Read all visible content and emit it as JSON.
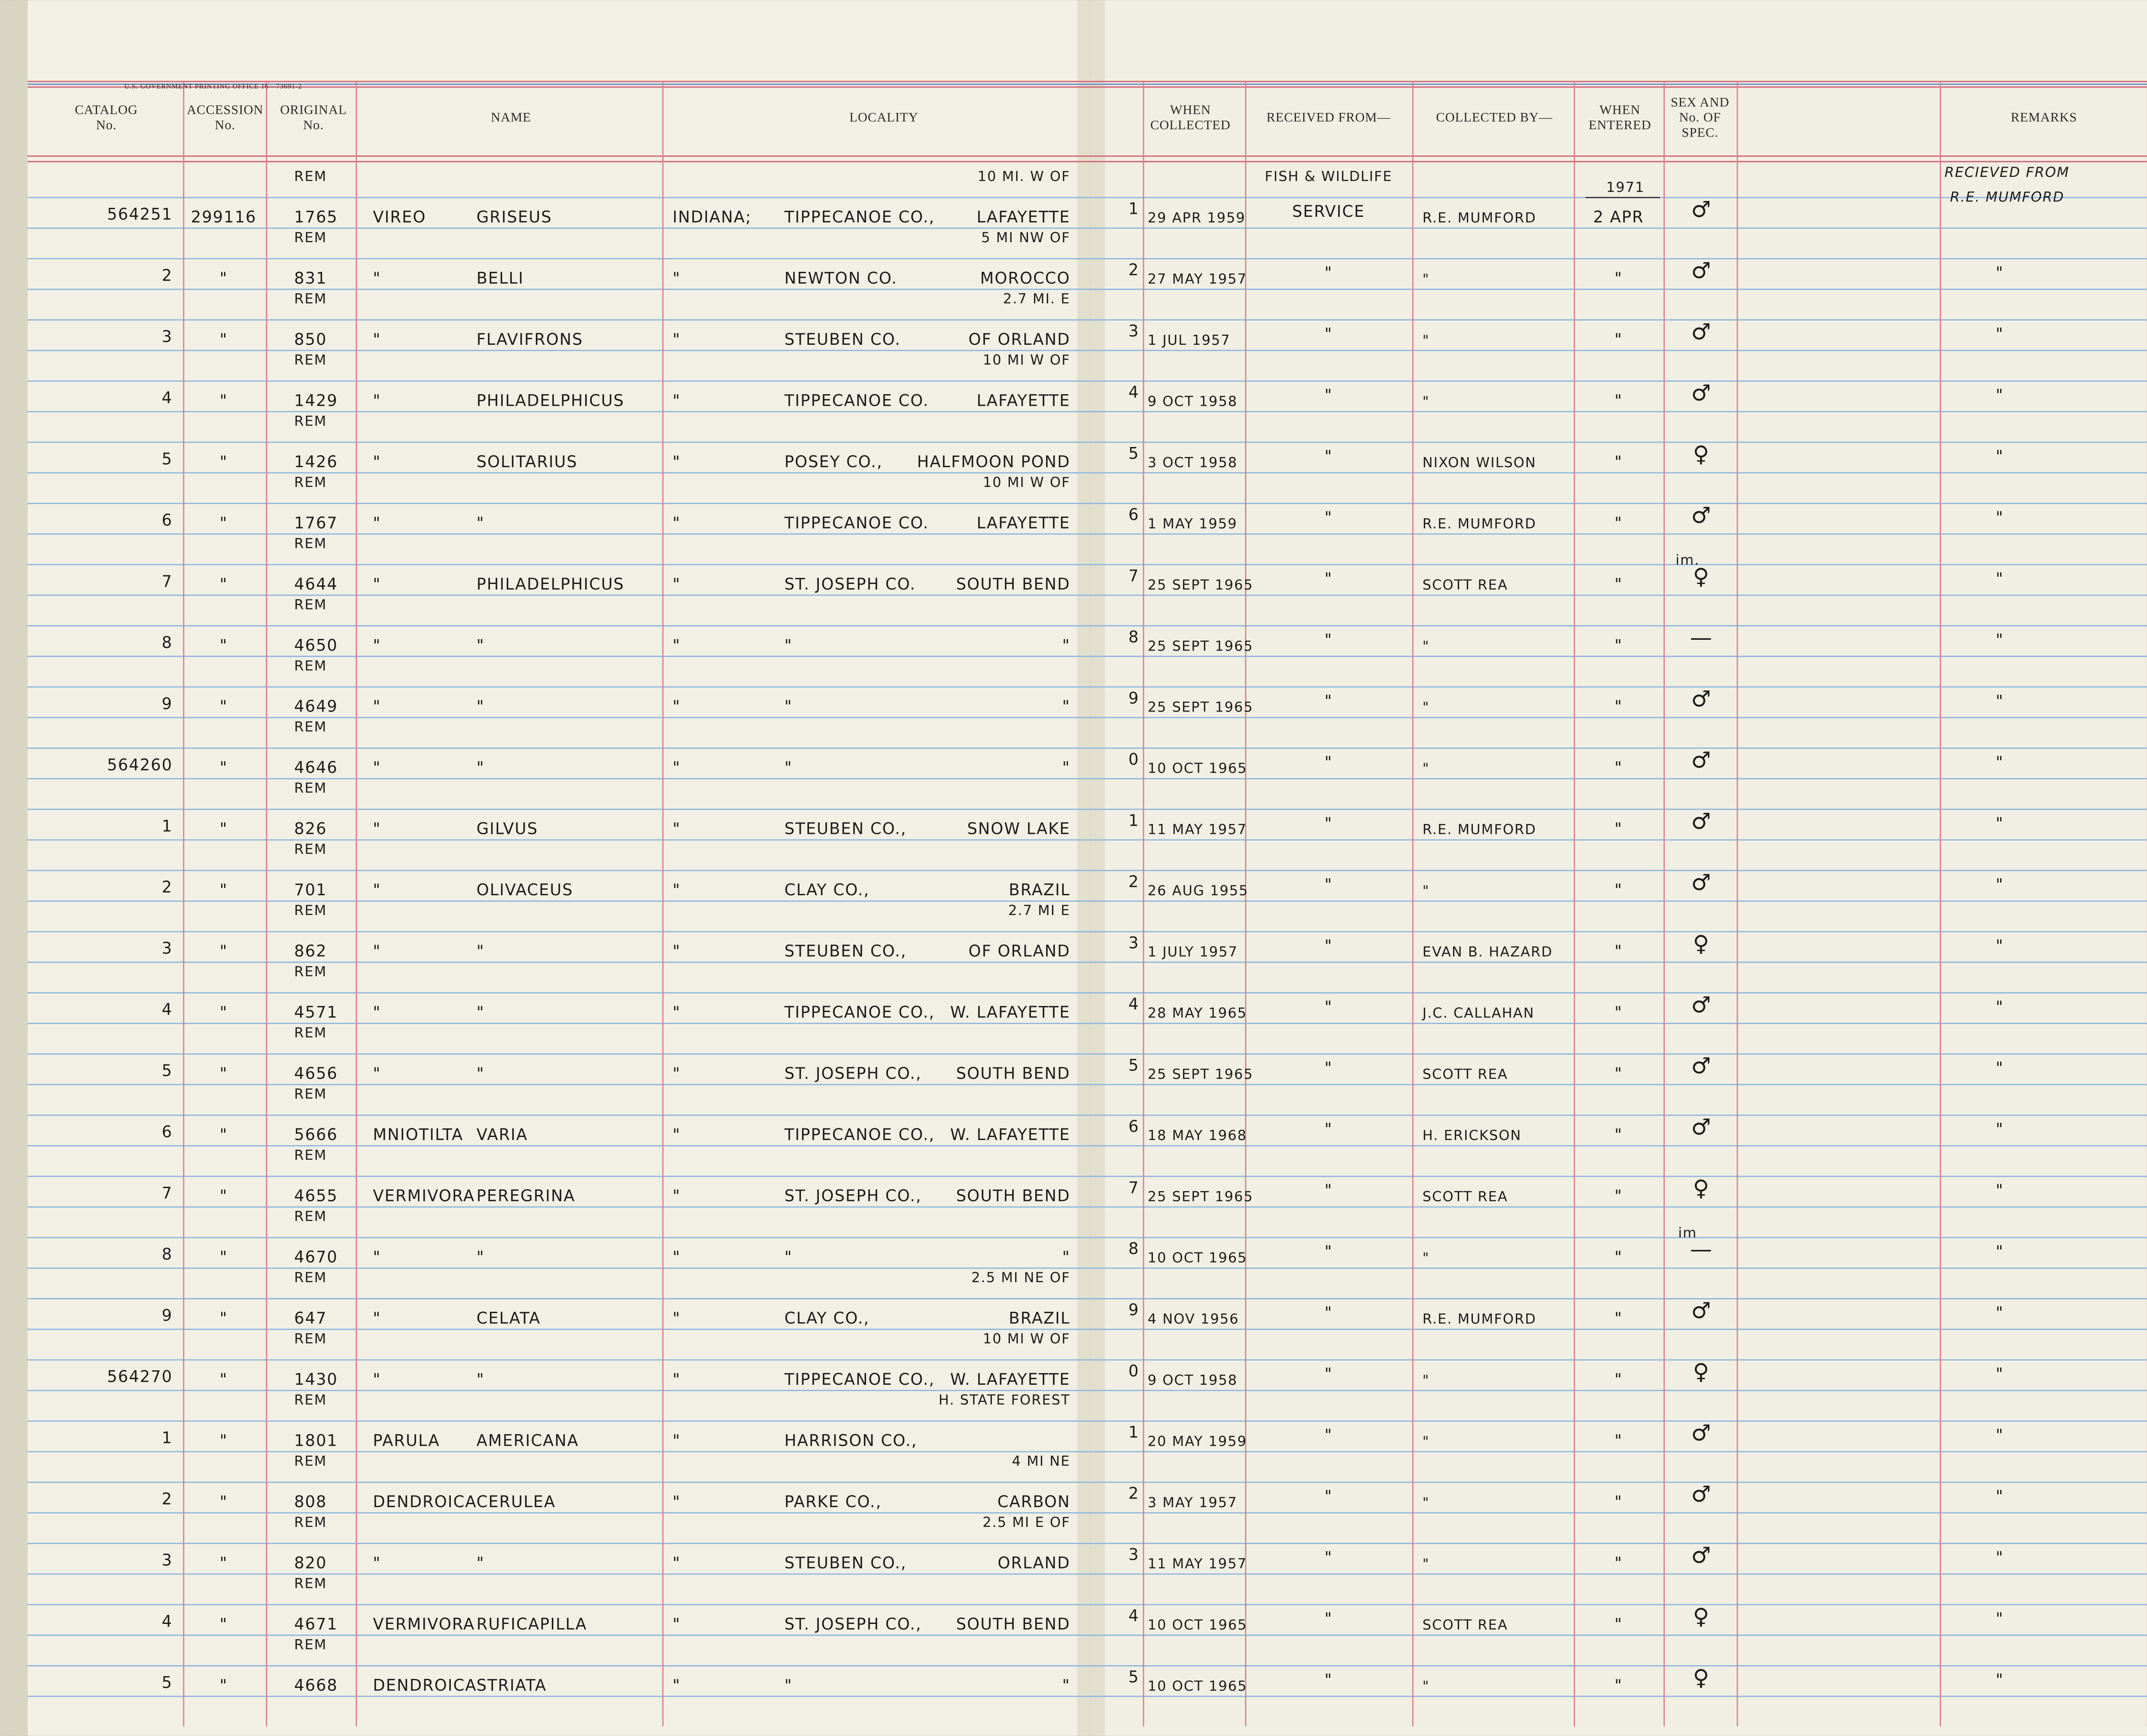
{
  "header": {
    "office": "U.S. GOVERNMENT PRINTING OFFICE    16—73691-2",
    "columns": {
      "cat": [
        "CATALOG",
        "No."
      ],
      "acc": [
        "ACCESSION",
        "No."
      ],
      "orig": [
        "ORIGINAL",
        "No."
      ],
      "name": [
        "NAME"
      ],
      "loc": [
        "LOCALITY"
      ],
      "when": [
        "WHEN",
        "COLLECTED"
      ],
      "recv": [
        "RECEIVED FROM—"
      ],
      "coll": [
        "COLLECTED BY—"
      ],
      "ent": [
        "WHEN",
        "ENTERED"
      ],
      "sex": [
        "SEX AND",
        "No. OF",
        "SPEC."
      ],
      "rem": [
        "REMARKS"
      ]
    }
  },
  "rows": [
    {
      "cat": "564251",
      "acc": "299116",
      "rem": "REM",
      "orig": "1765",
      "genus": "VIREO",
      "species": "GRISEUS",
      "state": "INDIANA;",
      "county": "TIPPECANOE CO.,",
      "place": "LAFAYETTE",
      "note": "10 MI. W OF",
      "idx": "1",
      "date": "29 APR 1959",
      "recv_top": "FISH & WILDLIFE",
      "recv": "SERVICE",
      "coll": "R.E. MUMFORD",
      "entered_top": "1971",
      "entered": "2 APR",
      "sex": "♂",
      "remark_lines": [
        "RECIEVED FROM",
        "R.E. MUMFORD"
      ]
    },
    {
      "cat": "2",
      "acc": "\"",
      "rem": "REM",
      "orig": "831",
      "genus": "\"",
      "species": "BELLI",
      "state": "\"",
      "county": "NEWTON CO.",
      "place": "MOROCCO",
      "note": "5 MI NW OF",
      "idx": "2",
      "date": "27 MAY 1957",
      "recv": "\"",
      "coll": "\"",
      "entered": "\"",
      "sex": "♂",
      "remarks": "\""
    },
    {
      "cat": "3",
      "acc": "\"",
      "rem": "REM",
      "orig": "850",
      "genus": "\"",
      "species": "FLAVIFRONS",
      "state": "\"",
      "county": "STEUBEN CO.",
      "place": "OF ORLAND",
      "note": "2.7 MI. E",
      "idx": "3",
      "date": "1 JUL 1957",
      "recv": "\"",
      "coll": "\"",
      "entered": "\"",
      "sex": "♂",
      "remarks": "\""
    },
    {
      "cat": "4",
      "acc": "\"",
      "rem": "REM",
      "orig": "1429",
      "genus": "\"",
      "species": "PHILADELPHICUS",
      "state": "\"",
      "county": "TIPPECANOE CO.",
      "place": "LAFAYETTE",
      "note": "10 MI W OF",
      "idx": "4",
      "date": "9 OCT 1958",
      "recv": "\"",
      "coll": "\"",
      "entered": "\"",
      "sex": "♂",
      "remarks": "\""
    },
    {
      "cat": "5",
      "acc": "\"",
      "rem": "REM",
      "orig": "1426",
      "genus": "\"",
      "species": "SOLITARIUS",
      "state": "\"",
      "county": "POSEY CO.,",
      "place": "HALFMOON POND",
      "idx": "5",
      "date": "3 OCT 1958",
      "recv": "\"",
      "coll": "NIXON WILSON",
      "entered": "\"",
      "sex": "♀",
      "remarks": "\""
    },
    {
      "cat": "6",
      "acc": "\"",
      "rem": "REM",
      "orig": "1767",
      "genus": "\"",
      "species": "\"",
      "state": "\"",
      "county": "TIPPECANOE CO.",
      "place": "LAFAYETTE",
      "note": "10 MI W OF",
      "idx": "6",
      "date": "1 MAY 1959",
      "recv": "\"",
      "coll": "R.E. MUMFORD",
      "entered": "\"",
      "sex": "♂",
      "remarks": "\""
    },
    {
      "cat": "7",
      "acc": "\"",
      "rem": "REM",
      "orig": "4644",
      "genus": "\"",
      "species": "PHILADELPHICUS",
      "state": "\"",
      "county": "ST. JOSEPH CO.",
      "place": "SOUTH BEND",
      "idx": "7",
      "date": "25 SEPT 1965",
      "recv": "\"",
      "coll": "SCOTT REA",
      "entered": "\"",
      "sex_top": "im.",
      "sex": "♀",
      "remarks": "\""
    },
    {
      "cat": "8",
      "acc": "\"",
      "rem": "REM",
      "orig": "4650",
      "genus": "\"",
      "species": "\"",
      "state": "\"",
      "county": "\"",
      "place": "\"",
      "idx": "8",
      "date": "25 SEPT 1965",
      "recv": "\"",
      "coll": "\"",
      "entered": "\"",
      "sex": "—",
      "remarks": "\""
    },
    {
      "cat": "9",
      "acc": "\"",
      "rem": "REM",
      "orig": "4649",
      "genus": "\"",
      "species": "\"",
      "state": "\"",
      "county": "\"",
      "place": "\"",
      "idx": "9",
      "date": "25 SEPT 1965",
      "recv": "\"",
      "coll": "\"",
      "entered": "\"",
      "sex": "♂",
      "remarks": "\""
    },
    {
      "cat": "564260",
      "acc": "\"",
      "rem": "REM",
      "orig": "4646",
      "genus": "\"",
      "species": "\"",
      "state": "\"",
      "county": "\"",
      "place": "\"",
      "idx": "0",
      "date": "10 OCT 1965",
      "recv": "\"",
      "coll": "\"",
      "entered": "\"",
      "sex": "♂",
      "remarks": "\""
    },
    {
      "cat": "1",
      "acc": "\"",
      "rem": "REM",
      "orig": "826",
      "genus": "\"",
      "species": "GILVUS",
      "state": "\"",
      "county": "STEUBEN CO.,",
      "place": "SNOW LAKE",
      "idx": "1",
      "date": "11 MAY 1957",
      "recv": "\"",
      "coll": "R.E. MUMFORD",
      "entered": "\"",
      "sex": "♂",
      "remarks": "\""
    },
    {
      "cat": "2",
      "acc": "\"",
      "rem": "REM",
      "orig": "701",
      "genus": "\"",
      "species": "OLIVACEUS",
      "state": "\"",
      "county": "CLAY CO.,",
      "place": "BRAZIL",
      "idx": "2",
      "date": "26 AUG 1955",
      "recv": "\"",
      "coll": "\"",
      "entered": "\"",
      "sex": "♂",
      "remarks": "\""
    },
    {
      "cat": "3",
      "acc": "\"",
      "rem": "REM",
      "orig": "862",
      "genus": "\"",
      "species": "\"",
      "state": "\"",
      "county": "STEUBEN CO.,",
      "place": "OF ORLAND",
      "note": "2.7 MI E",
      "idx": "3",
      "date": "1 JULY 1957",
      "recv": "\"",
      "coll": "EVAN B. HAZARD",
      "entered": "\"",
      "sex": "♀",
      "remarks": "\""
    },
    {
      "cat": "4",
      "acc": "\"",
      "rem": "REM",
      "orig": "4571",
      "genus": "\"",
      "species": "\"",
      "state": "\"",
      "county": "TIPPECANOE CO.,",
      "place": "W. LAFAYETTE",
      "idx": "4",
      "date": "28 MAY 1965",
      "recv": "\"",
      "coll": "J.C. CALLAHAN",
      "entered": "\"",
      "sex": "♂",
      "remarks": "\""
    },
    {
      "cat": "5",
      "acc": "\"",
      "rem": "REM",
      "orig": "4656",
      "genus": "\"",
      "species": "\"",
      "state": "\"",
      "county": "ST. JOSEPH CO.,",
      "place": "SOUTH BEND",
      "idx": "5",
      "date": "25 SEPT 1965",
      "recv": "\"",
      "coll": "SCOTT REA",
      "entered": "\"",
      "sex": "♂",
      "remarks": "\""
    },
    {
      "cat": "6",
      "acc": "\"",
      "rem": "REM",
      "orig": "5666",
      "genus": "MNIOTILTA",
      "species": "VARIA",
      "state": "\"",
      "county": "TIPPECANOE CO.,",
      "place": "W. LAFAYETTE",
      "idx": "6",
      "date": "18 MAY 1968",
      "recv": "\"",
      "coll": "H. ERICKSON",
      "entered": "\"",
      "sex": "♂",
      "remarks": "\""
    },
    {
      "cat": "7",
      "acc": "\"",
      "rem": "REM",
      "orig": "4655",
      "genus": "VERMIVORA",
      "species": "PEREGRINA",
      "state": "\"",
      "county": "ST. JOSEPH CO.,",
      "place": "SOUTH BEND",
      "idx": "7",
      "date": "25 SEPT 1965",
      "recv": "\"",
      "coll": "SCOTT REA",
      "entered": "\"",
      "sex": "♀",
      "remarks": "\""
    },
    {
      "cat": "8",
      "acc": "\"",
      "rem": "REM",
      "orig": "4670",
      "genus": "\"",
      "species": "\"",
      "state": "\"",
      "county": "\"",
      "place": "\"",
      "idx": "8",
      "date": "10 OCT 1965",
      "recv": "\"",
      "coll": "\"",
      "entered": "\"",
      "sex_top": "im",
      "sex": "—",
      "remarks": "\""
    },
    {
      "cat": "9",
      "acc": "\"",
      "rem": "REM",
      "orig": "647",
      "genus": "\"",
      "species": "CELATA",
      "state": "\"",
      "county": "CLAY CO.,",
      "place": "BRAZIL",
      "note": "2.5 MI NE OF",
      "idx": "9",
      "date": "4 NOV 1956",
      "recv": "\"",
      "coll": "R.E. MUMFORD",
      "entered": "\"",
      "sex": "♂",
      "remarks": "\""
    },
    {
      "cat": "564270",
      "acc": "\"",
      "rem": "REM",
      "orig": "1430",
      "genus": "\"",
      "species": "\"",
      "state": "\"",
      "county": "TIPPECANOE CO.,",
      "place": "W. LAFAYETTE",
      "note": "10 MI W OF",
      "idx": "0",
      "date": "9 OCT 1958",
      "recv": "\"",
      "coll": "\"",
      "entered": "\"",
      "sex": "♀",
      "remarks": "\""
    },
    {
      "cat": "1",
      "acc": "\"",
      "rem": "REM",
      "orig": "1801",
      "genus": "PARULA",
      "species": "AMERICANA",
      "state": "\"",
      "county": "HARRISON CO.,",
      "note": "H. STATE FOREST",
      "idx": "1",
      "date": "20 MAY 1959",
      "recv": "\"",
      "coll": "\"",
      "entered": "\"",
      "sex": "♂",
      "remarks": "\""
    },
    {
      "cat": "2",
      "acc": "\"",
      "rem": "REM",
      "orig": "808",
      "genus": "DENDROICA",
      "species": "CERULEA",
      "state": "\"",
      "county": "PARKE CO.,",
      "place": "CARBON",
      "note": "4 MI NE",
      "idx": "2",
      "date": "3 MAY 1957",
      "recv": "\"",
      "coll": "\"",
      "entered": "\"",
      "sex": "♂",
      "remarks": "\""
    },
    {
      "cat": "3",
      "acc": "\"",
      "rem": "REM",
      "orig": "820",
      "genus": "\"",
      "species": "\"",
      "state": "\"",
      "county": "STEUBEN CO.,",
      "place": "ORLAND",
      "note": "2.5 MI E OF",
      "idx": "3",
      "date": "11 MAY 1957",
      "recv": "\"",
      "coll": "\"",
      "entered": "\"",
      "sex": "♂",
      "remarks": "\""
    },
    {
      "cat": "4",
      "acc": "\"",
      "rem": "REM",
      "orig": "4671",
      "genus": "VERMIVORA",
      "species": "RUFICAPILLA",
      "state": "\"",
      "county": "ST. JOSEPH CO.,",
      "place": "SOUTH BEND",
      "idx": "4",
      "date": "10 OCT 1965",
      "recv": "\"",
      "coll": "SCOTT REA",
      "entered": "\"",
      "sex": "♀",
      "remarks": "\""
    },
    {
      "cat": "5",
      "acc": "\"",
      "rem": "REM",
      "orig": "4668",
      "genus": "DENDROICA",
      "species": "STRIATA",
      "state": "\"",
      "county": "\"",
      "place": "\"",
      "idx": "5",
      "date": "10 OCT 1965",
      "recv": "\"",
      "coll": "\"",
      "entered": "\"",
      "sex": "♀",
      "remarks": "\""
    }
  ]
}
